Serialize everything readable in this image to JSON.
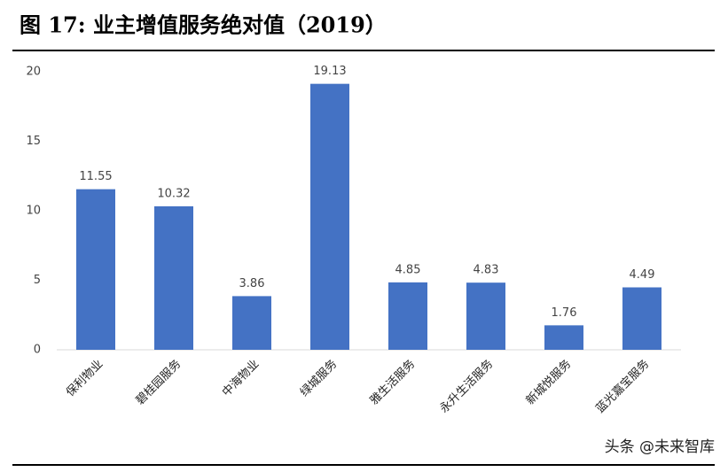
{
  "chart_data": {
    "type": "bar",
    "title": "图 17:  业主增值服务绝对值（2019）",
    "categories": [
      "保利物业",
      "碧桂园服务",
      "中海物业",
      "绿城服务",
      "雅生活服务",
      "永升生活服务",
      "新城悦服务",
      "蓝光嘉宝服务"
    ],
    "values": [
      11.55,
      10.32,
      3.86,
      19.13,
      4.85,
      4.83,
      1.76,
      4.49
    ],
    "color": "#4472c4",
    "ylim": [
      0,
      20
    ],
    "yticks": [
      0,
      5,
      10,
      15,
      20
    ],
    "grid": false,
    "watermark": "头条 @未来智库"
  }
}
